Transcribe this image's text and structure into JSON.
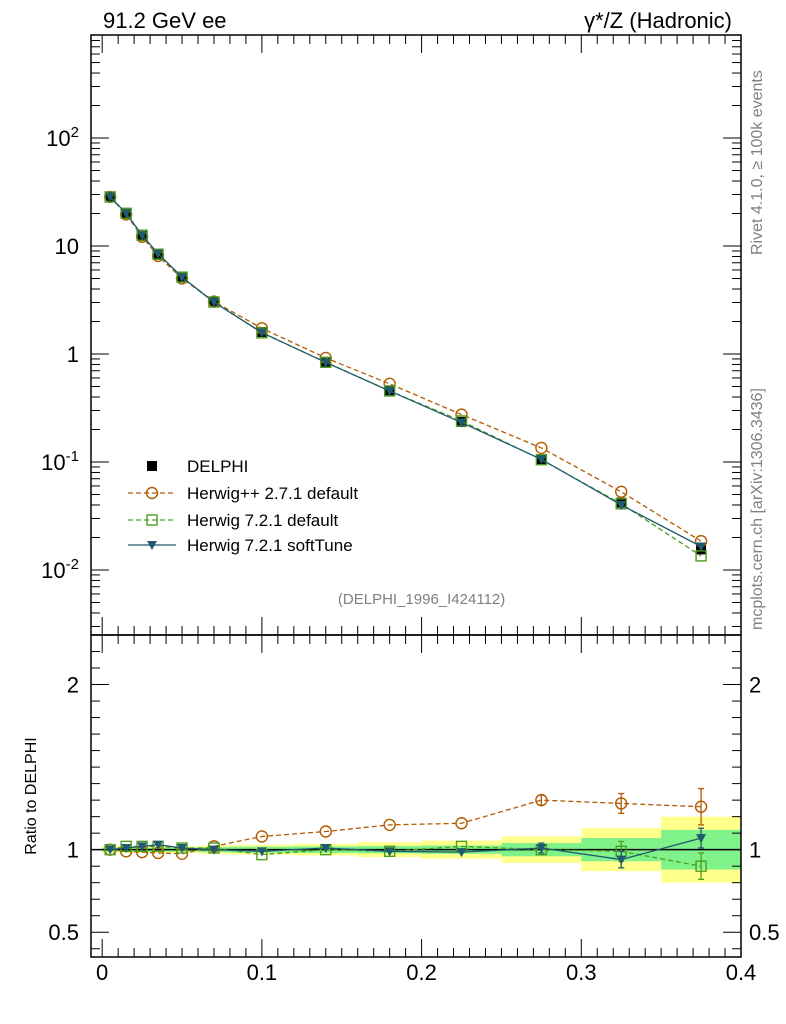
{
  "header": {
    "left_title": "91.2 GeV ee",
    "right_title": "γ*/Z (Hadronic)"
  },
  "side_labels": {
    "rivet": "Rivet 4.1.0, ≥ 100k events",
    "site": "mcplots.cern.ch [arXiv:1306.3436]"
  },
  "chart_data": [
    {
      "type": "line",
      "yscale": "log",
      "ylim": [
        0.0025,
        900
      ],
      "xlim": [
        -0.007,
        0.4
      ],
      "annotation": "(DELPHI_1996_I424112)",
      "y_tick_labels": [
        "10^-2",
        "10^-1",
        "1",
        "10",
        "10^2"
      ],
      "legend_placement": "lower-left",
      "series": [
        {
          "name": "DELPHI",
          "color": "#000000",
          "marker": "filled-square",
          "x": [
            0.005,
            0.015,
            0.025,
            0.035,
            0.05,
            0.07,
            0.1,
            0.14,
            0.18,
            0.225,
            0.275,
            0.325,
            0.375
          ],
          "y": [
            28.5,
            19.8,
            12.4,
            8.3,
            5.1,
            3.0,
            1.6,
            0.83,
            0.46,
            0.235,
            0.105,
            0.042,
            0.0155
          ]
        },
        {
          "name": "Herwig++ 2.7.1 default",
          "color": "#b35a00",
          "marker": "open-circle",
          "dashed": true,
          "x": [
            0.005,
            0.015,
            0.025,
            0.035,
            0.05,
            0.07,
            0.1,
            0.14,
            0.18,
            0.225,
            0.275,
            0.325,
            0.375
          ],
          "y": [
            28.5,
            19.6,
            12.2,
            8.1,
            5.0,
            3.06,
            1.73,
            0.92,
            0.53,
            0.275,
            0.135,
            0.053,
            0.0185
          ]
        },
        {
          "name": "Herwig 7.2.1 default",
          "color": "#4c9f1f",
          "marker": "open-square",
          "dashed": true,
          "x": [
            0.005,
            0.015,
            0.025,
            0.035,
            0.05,
            0.07,
            0.1,
            0.14,
            0.18,
            0.225,
            0.275,
            0.325,
            0.375
          ],
          "y": [
            28.5,
            20.1,
            12.6,
            8.4,
            5.15,
            3.03,
            1.57,
            0.84,
            0.455,
            0.24,
            0.105,
            0.041,
            0.0135
          ]
        },
        {
          "name": "Herwig 7.2.1 softTune",
          "color": "#1f5a6e",
          "marker": "filled-triangle-down",
          "x": [
            0.005,
            0.015,
            0.025,
            0.035,
            0.05,
            0.07,
            0.1,
            0.14,
            0.18,
            0.225,
            0.275,
            0.325,
            0.375
          ],
          "y": [
            28.5,
            20.1,
            12.6,
            8.5,
            5.15,
            3.02,
            1.58,
            0.835,
            0.455,
            0.232,
            0.106,
            0.04,
            0.0165
          ]
        }
      ]
    },
    {
      "type": "line",
      "ylabel": "Ratio to DELPHI",
      "xlim": [
        -0.007,
        0.4
      ],
      "ylim": [
        0.35,
        2.3
      ],
      "x_tick_labels": [
        "0",
        "0.1",
        "0.2",
        "0.3",
        "0.4"
      ],
      "y_tick_labels": [
        "0.5",
        "1",
        "2"
      ],
      "bands": {
        "x_edges": [
          0.0,
          0.01,
          0.02,
          0.03,
          0.04,
          0.06,
          0.08,
          0.12,
          0.16,
          0.2,
          0.25,
          0.3,
          0.35,
          0.4
        ],
        "green_halfwidth": [
          0.012,
          0.012,
          0.012,
          0.012,
          0.012,
          0.015,
          0.018,
          0.02,
          0.022,
          0.025,
          0.04,
          0.07,
          0.12
        ],
        "yellow_halfwidth": [
          0.02,
          0.02,
          0.02,
          0.02,
          0.02,
          0.025,
          0.03,
          0.035,
          0.045,
          0.055,
          0.08,
          0.13,
          0.2
        ],
        "green_color": "#7ff28a",
        "yellow_color": "#ffff8c"
      },
      "series": [
        {
          "name": "Herwig++ 2.7.1 default",
          "color": "#b35a00",
          "marker": "open-circle",
          "dashed": true,
          "x": [
            0.005,
            0.015,
            0.025,
            0.035,
            0.05,
            0.07,
            0.1,
            0.14,
            0.18,
            0.225,
            0.275,
            0.325,
            0.375
          ],
          "y": [
            1.0,
            0.99,
            0.985,
            0.98,
            0.975,
            1.02,
            1.08,
            1.11,
            1.15,
            1.16,
            1.3,
            1.28,
            1.26
          ],
          "err": [
            0.0,
            0.0,
            0.0,
            0.0,
            0.0,
            0.0,
            0.0,
            0.0,
            0.0,
            0.0,
            0.03,
            0.06,
            0.11
          ]
        },
        {
          "name": "Herwig 7.2.1 default",
          "color": "#4c9f1f",
          "marker": "open-square",
          "dashed": true,
          "x": [
            0.005,
            0.015,
            0.025,
            0.035,
            0.05,
            0.07,
            0.1,
            0.14,
            0.18,
            0.225,
            0.275,
            0.325,
            0.375
          ],
          "y": [
            1.0,
            1.02,
            1.02,
            1.02,
            1.01,
            1.01,
            0.97,
            1.0,
            0.99,
            1.02,
            1.0,
            0.99,
            0.9
          ],
          "err": [
            0.0,
            0.0,
            0.0,
            0.0,
            0.0,
            0.0,
            0.0,
            0.0,
            0.0,
            0.0,
            0.03,
            0.06,
            0.08
          ]
        },
        {
          "name": "Herwig 7.2.1 softTune",
          "color": "#1f5a6e",
          "marker": "filled-triangle-down",
          "x": [
            0.005,
            0.015,
            0.025,
            0.035,
            0.05,
            0.07,
            0.1,
            0.14,
            0.18,
            0.225,
            0.275,
            0.325,
            0.375
          ],
          "y": [
            1.0,
            1.01,
            1.02,
            1.03,
            1.01,
            1.0,
            0.99,
            1.01,
            0.99,
            0.985,
            1.01,
            0.94,
            1.07
          ],
          "err": [
            0.0,
            0.0,
            0.0,
            0.0,
            0.0,
            0.0,
            0.0,
            0.0,
            0.0,
            0.0,
            0.03,
            0.05,
            0.06
          ]
        }
      ]
    }
  ]
}
